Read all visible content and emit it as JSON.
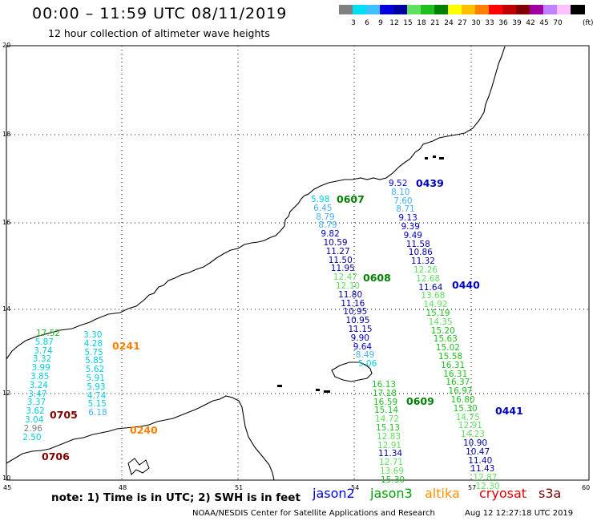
{
  "title": "00:00 – 11:59 UTC 08/11/2019",
  "subtitle": "12 hour collection of altimeter wave heights",
  "scale": {
    "unit": "(ft)",
    "items": [
      {
        "label": "",
        "color": "#808080"
      },
      {
        "label": "3",
        "color": "#00e0f0"
      },
      {
        "label": "6",
        "color": "#40c0ff"
      },
      {
        "label": "9",
        "color": "#0000e0"
      },
      {
        "label": "12",
        "color": "#0000a0"
      },
      {
        "label": "15",
        "color": "#60e060"
      },
      {
        "label": "18",
        "color": "#20c020"
      },
      {
        "label": "21",
        "color": "#008000"
      },
      {
        "label": "24",
        "color": "#ffff00"
      },
      {
        "label": "27",
        "color": "#ffc000"
      },
      {
        "label": "30",
        "color": "#ff8000"
      },
      {
        "label": "33",
        "color": "#ff0000"
      },
      {
        "label": "36",
        "color": "#c00000"
      },
      {
        "label": "39",
        "color": "#800000"
      },
      {
        "label": "42",
        "color": "#a000a0"
      },
      {
        "label": "45",
        "color": "#c080ff"
      },
      {
        "label": "70",
        "color": "#ffc0ff"
      },
      {
        "label": "",
        "color": "#000000"
      }
    ]
  },
  "lat_labels": [
    "20",
    "18",
    "16",
    "14",
    "12",
    "10"
  ],
  "lon_labels": [
    "45",
    "48",
    "51",
    "54",
    "57",
    "60"
  ],
  "pass_labels": [
    {
      "text": "0439",
      "color": "#0000c0"
    },
    {
      "text": "0607",
      "color": "#008000"
    },
    {
      "text": "0608",
      "color": "#008000"
    },
    {
      "text": "0440",
      "color": "#0000c0"
    },
    {
      "text": "0241",
      "color": "#ff8000"
    },
    {
      "text": "0705",
      "color": "#800000"
    },
    {
      "text": "0240",
      "color": "#ff8000"
    },
    {
      "text": "0706",
      "color": "#800000"
    },
    {
      "text": "0609",
      "color": "#008000"
    },
    {
      "text": "0441",
      "color": "#0000c0"
    }
  ],
  "tracks": [
    {
      "name": "track-0607",
      "x0": 388,
      "y0": 244,
      "dx": 3.1,
      "dy": 10.8,
      "values": [
        {
          "v": "5.98",
          "c": "#00d0e0"
        },
        {
          "v": "6.45",
          "c": "#40b0ff"
        },
        {
          "v": "8.79",
          "c": "#40b0ff"
        },
        {
          "v": "8.79",
          "c": "#40b0ff"
        },
        {
          "v": "9.82",
          "c": "#0000d0"
        },
        {
          "v": "10.59",
          "c": "#0000a0"
        },
        {
          "v": "11.27",
          "c": "#0000a0"
        },
        {
          "v": "11.50",
          "c": "#0000a0"
        },
        {
          "v": "11.95",
          "c": "#0000a0"
        },
        {
          "v": "12.47",
          "c": "#60e060"
        },
        {
          "v": "12.10",
          "c": "#60e060"
        },
        {
          "v": "11.80",
          "c": "#0000a0"
        },
        {
          "v": "11.16",
          "c": "#0000a0"
        },
        {
          "v": "10.95",
          "c": "#0000a0"
        },
        {
          "v": "10.95",
          "c": "#0000a0"
        },
        {
          "v": "11.15",
          "c": "#0000a0"
        },
        {
          "v": "9.90",
          "c": "#0000d0"
        },
        {
          "v": "9.64",
          "c": "#0000d0"
        },
        {
          "v": "8.49",
          "c": "#40b0ff"
        },
        {
          "v": "5.06",
          "c": "#00d0e0"
        }
      ]
    },
    {
      "name": "track-0439",
      "x0": 485,
      "y0": 224,
      "dx": 3.1,
      "dy": 10.8,
      "values": [
        {
          "v": "9.52",
          "c": "#0000d0"
        },
        {
          "v": "8.10",
          "c": "#40b0ff"
        },
        {
          "v": "7.60",
          "c": "#40b0ff"
        },
        {
          "v": "8.71",
          "c": "#40b0ff"
        },
        {
          "v": "9.13",
          "c": "#0000d0"
        },
        {
          "v": "9.39",
          "c": "#0000d0"
        },
        {
          "v": "9.49",
          "c": "#0000d0"
        },
        {
          "v": "11.58",
          "c": "#0000a0"
        },
        {
          "v": "10.86",
          "c": "#0000a0"
        },
        {
          "v": "11.32",
          "c": "#0000a0"
        },
        {
          "v": "12.26",
          "c": "#60e060"
        },
        {
          "v": "12.68",
          "c": "#60e060"
        },
        {
          "v": "11.64",
          "c": "#0000a0"
        },
        {
          "v": "13.68",
          "c": "#60e060"
        },
        {
          "v": "14.92",
          "c": "#60e060"
        },
        {
          "v": "15.19",
          "c": "#20c020"
        },
        {
          "v": "14.35",
          "c": "#60e060"
        },
        {
          "v": "15.20",
          "c": "#20c020"
        },
        {
          "v": "15.63",
          "c": "#20c020"
        },
        {
          "v": "15.02",
          "c": "#20c020"
        },
        {
          "v": "15.58",
          "c": "#20c020"
        },
        {
          "v": "16.31",
          "c": "#20c020"
        },
        {
          "v": "16.31",
          "c": "#20c020"
        },
        {
          "v": "16.37",
          "c": "#20c020"
        },
        {
          "v": "16.97",
          "c": "#20c020"
        },
        {
          "v": "16.80",
          "c": "#20c020"
        },
        {
          "v": "15.30",
          "c": "#20c020"
        },
        {
          "v": "14.75",
          "c": "#60e060"
        },
        {
          "v": "12.91",
          "c": "#60e060"
        },
        {
          "v": "14.23",
          "c": "#60e060"
        },
        {
          "v": "10.90",
          "c": "#0000a0"
        },
        {
          "v": "10.47",
          "c": "#0000a0"
        },
        {
          "v": "11.40",
          "c": "#0000a0"
        },
        {
          "v": "11.43",
          "c": "#0000a0"
        },
        {
          "v": "12.87",
          "c": "#60e060"
        },
        {
          "v": "12.30",
          "c": "#60e060"
        }
      ]
    },
    {
      "name": "track-0609",
      "x0": 464,
      "y0": 475,
      "dx": 1.0,
      "dy": 10.8,
      "values": [
        {
          "v": "16.13",
          "c": "#20c020"
        },
        {
          "v": "17.18",
          "c": "#20c020"
        },
        {
          "v": "16.59",
          "c": "#20c020"
        },
        {
          "v": "15.14",
          "c": "#20c020"
        },
        {
          "v": "14.72",
          "c": "#60e060"
        },
        {
          "v": "15.13",
          "c": "#20c020"
        },
        {
          "v": "12.83",
          "c": "#60e060"
        },
        {
          "v": "12.91",
          "c": "#60e060"
        },
        {
          "v": "11.34",
          "c": "#0000a0"
        },
        {
          "v": "12.71",
          "c": "#60e060"
        },
        {
          "v": "13.69",
          "c": "#60e060"
        },
        {
          "v": "15.30",
          "c": "#20c020"
        }
      ]
    },
    {
      "name": "track-0705",
      "x0": 45,
      "y0": 411,
      "dx": -1.4,
      "dy": 10.8,
      "values": [
        {
          "v": "17.52",
          "c": "#20c020"
        },
        {
          "v": "5.87",
          "c": "#00d0e0"
        },
        {
          "v": "3.74",
          "c": "#00d0e0"
        },
        {
          "v": "3.32",
          "c": "#00d0e0"
        },
        {
          "v": "3.99",
          "c": "#00d0e0"
        },
        {
          "v": "3.85",
          "c": "#00d0e0"
        },
        {
          "v": "3.24",
          "c": "#00d0e0"
        },
        {
          "v": "3.47",
          "c": "#00d0e0"
        },
        {
          "v": "3.37",
          "c": "#00d0e0"
        },
        {
          "v": "3.62",
          "c": "#00d0e0"
        },
        {
          "v": "3.04",
          "c": "#00d0e0"
        },
        {
          "v": "2.96",
          "c": "#808080"
        },
        {
          "v": "2.50",
          "c": "#00d0e0"
        }
      ]
    },
    {
      "name": "track-0241",
      "x0": 104,
      "y0": 413,
      "dx": 0.7,
      "dy": 10.8,
      "values": [
        {
          "v": "3.30",
          "c": "#00d0e0"
        },
        {
          "v": "4.28",
          "c": "#00d0e0"
        },
        {
          "v": "5.75",
          "c": "#00d0e0"
        },
        {
          "v": "5.85",
          "c": "#00d0e0"
        },
        {
          "v": "5.62",
          "c": "#00d0e0"
        },
        {
          "v": "5.91",
          "c": "#00d0e0"
        },
        {
          "v": "5.93",
          "c": "#00d0e0"
        },
        {
          "v": "4.74",
          "c": "#00d0e0"
        },
        {
          "v": "5.15",
          "c": "#00d0e0"
        },
        {
          "v": "6.18",
          "c": "#40b0ff"
        }
      ]
    }
  ],
  "footer": {
    "note": "note:  1) Time is in UTC;  2) SWH is in feet",
    "legend": [
      {
        "name": "jason2",
        "color": "#0000e0"
      },
      {
        "name": "jason3",
        "color": "#00a000"
      },
      {
        "name": "altika",
        "color": "#ff9000"
      },
      {
        "name": "cryosat",
        "color": "#e00000"
      },
      {
        "name": "s3a",
        "color": "#800000"
      }
    ],
    "credit": "NOAA/NESDIS Center for Satellite Applications and Research",
    "stamp": "Aug 12 12:27:18 UTC 2019"
  }
}
